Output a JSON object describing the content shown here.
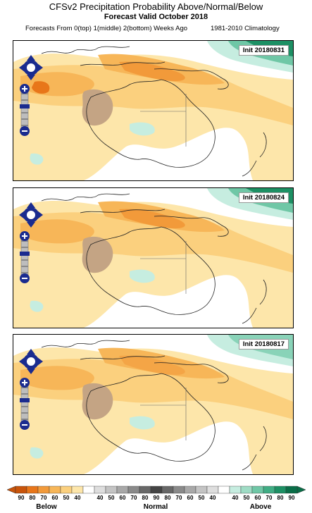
{
  "header": {
    "title": "CFSv2 Precipitation Probability Above/Normal/Below",
    "subtitle": "Forecast Valid October 2018",
    "info_left": "Forecasts From 0(top) 1(middle) 2(bottom) Weeks Ago",
    "info_right": "1981-2010 Climatology"
  },
  "panels": [
    {
      "init_label": "Init 20180831"
    },
    {
      "init_label": "Init 20180824"
    },
    {
      "init_label": "Init 20180817"
    }
  ],
  "map_controls": {
    "pan_icon": "pan-arrows-icon",
    "zoom_in_icon": "plus-icon",
    "zoom_out_icon": "minus-icon"
  },
  "legend": {
    "ticks": [
      "90",
      "80",
      "70",
      "60",
      "50",
      "40",
      "",
      "40",
      "50",
      "60",
      "70",
      "80",
      "90",
      "80",
      "70",
      "60",
      "50",
      "40",
      "",
      "40",
      "50",
      "60",
      "70",
      "80",
      "90"
    ],
    "colors": [
      "#c9540a",
      "#e8761a",
      "#f29a3a",
      "#f7b658",
      "#fbd07e",
      "#fde6aa",
      "#ffffff",
      "#dedede",
      "#c4c4c4",
      "#a8a8a8",
      "#8a8a8a",
      "#686868",
      "#444444",
      "#686868",
      "#8a8a8a",
      "#a8a8a8",
      "#c4c4c4",
      "#dedede",
      "#ffffff",
      "#c6ede0",
      "#9fdcc5",
      "#6fc7a6",
      "#40ad84",
      "#1d9064",
      "#0a6e48"
    ],
    "label_below": "Below",
    "label_normal": "Normal",
    "label_above": "Above"
  },
  "colors": {
    "below_light": "#fde6aa",
    "below_mid": "#fbd07e",
    "below_strong": "#f7b658",
    "below_darker": "#f29a3a",
    "below_darkest": "#e8761a",
    "normal_brown": "#c4a484",
    "above_light": "#c6ede0",
    "above_mid": "#6fc7a6",
    "above_dark": "#1d9064",
    "control_navy": "#1a2b8f"
  }
}
